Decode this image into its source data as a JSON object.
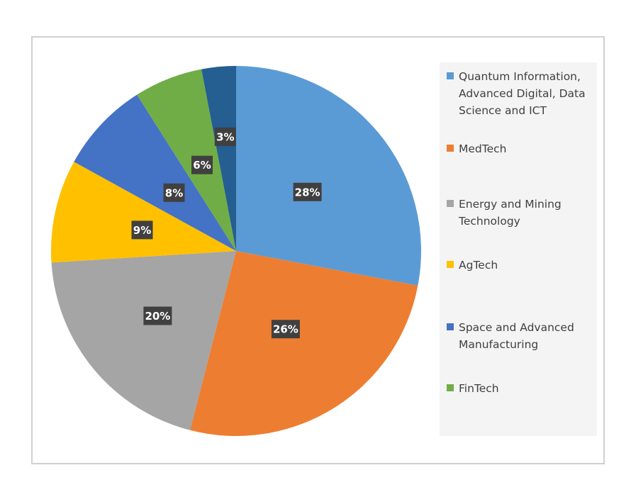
{
  "chart_data": {
    "type": "pie",
    "title": "",
    "categories": [
      "Quantum Information, Advanced Digital, Data Science and ICT",
      "MedTech",
      "Energy and Mining Technology",
      "AgTech",
      "Space and Advanced Manufacturing",
      "FinTech",
      ""
    ],
    "values": [
      28,
      26,
      20,
      9,
      8,
      6,
      3
    ],
    "data_labels": [
      "28%",
      "26%",
      "20%",
      "9%",
      "8%",
      "6%",
      "3%"
    ],
    "colors": [
      "#5B9BD5",
      "#ED7D31",
      "#A5A5A5",
      "#FFC000",
      "#4472C4",
      "#70AD47",
      "#255E91"
    ],
    "legend": [
      {
        "label": "Quantum Information, Advanced Digital, Data Science and ICT",
        "color": "#5B9BD5"
      },
      {
        "label": "MedTech",
        "color": "#ED7D31"
      },
      {
        "label": "Energy and Mining Technology",
        "color": "#A5A5A5"
      },
      {
        "label": "AgTech",
        "color": "#FFC000"
      },
      {
        "label": "Space and Advanced Manufacturing",
        "color": "#4472C4"
      },
      {
        "label": "FinTech",
        "color": "#70AD47"
      }
    ],
    "legend_position": "right",
    "start_angle_deg": 0,
    "direction": "clockwise"
  }
}
